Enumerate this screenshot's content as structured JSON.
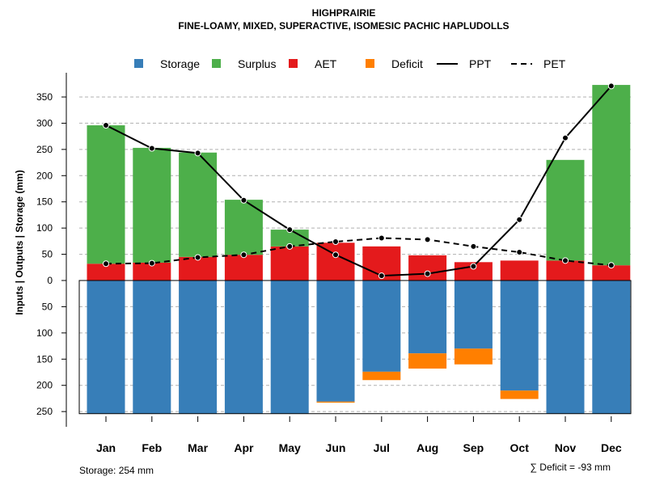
{
  "chart_data": {
    "type": "bar",
    "title": "HIGHPRAIRIE",
    "subtitle": "FINE-LOAMY, MIXED, SUPERACTIVE, ISOMESIC PACHIC HAPLUDOLLS",
    "ylabel": "Inputs | Outputs | Storage    (mm)",
    "ylim": [
      -254,
      375
    ],
    "yticks": [
      350,
      300,
      250,
      200,
      150,
      100,
      50,
      0,
      -50,
      -100,
      -150,
      -200,
      -250
    ],
    "ytick_labels": [
      "350",
      "300",
      "250",
      "200",
      "150",
      "100",
      "50",
      "0",
      "50",
      "100",
      "150",
      "200",
      "250"
    ],
    "categories": [
      "Jan",
      "Feb",
      "Mar",
      "Apr",
      "May",
      "Jun",
      "Jul",
      "Aug",
      "Sep",
      "Oct",
      "Nov",
      "Dec"
    ],
    "legend": [
      "Storage",
      "Surplus",
      "AET",
      "Deficit",
      "PPT",
      "PET"
    ],
    "legend_position": "top",
    "colors": {
      "Storage": "#377EB8",
      "Surplus": "#4DAF4A",
      "AET": "#E41A1C",
      "Deficit": "#FF7F00"
    },
    "series": [
      {
        "name": "Storage",
        "values": [
          254,
          254,
          254,
          254,
          254,
          231,
          174,
          139,
          130,
          210,
          254,
          254
        ]
      },
      {
        "name": "Surplus",
        "values": [
          264,
          219,
          199,
          105,
          32,
          0,
          0,
          0,
          0,
          0,
          192,
          344
        ]
      },
      {
        "name": "AET",
        "values": [
          32,
          34,
          45,
          49,
          65,
          72,
          65,
          48,
          35,
          38,
          38,
          29
        ]
      },
      {
        "name": "Deficit",
        "values": [
          0,
          0,
          0,
          0,
          0,
          2,
          16,
          29,
          30,
          16,
          0,
          0
        ]
      },
      {
        "name": "PPT",
        "values": [
          296,
          252,
          243,
          153,
          97,
          49,
          9,
          13,
          27,
          116,
          272,
          371
        ]
      },
      {
        "name": "PET",
        "values": [
          32,
          33,
          44,
          49,
          65,
          74,
          81,
          78,
          65,
          54,
          38,
          29
        ]
      }
    ],
    "annotations": {
      "storage": "Storage: 254 mm",
      "deficit": "∑ Deficit = -93 mm"
    }
  }
}
